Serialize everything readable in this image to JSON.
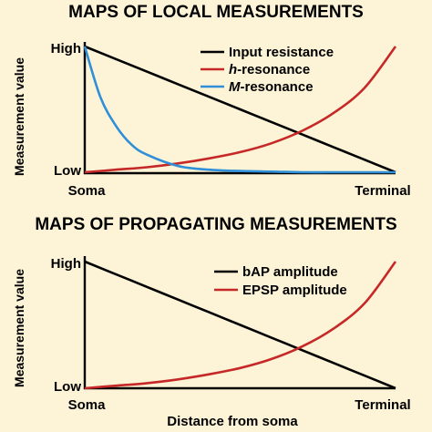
{
  "chart_data": [
    {
      "type": "line",
      "title": "MAPS OF LOCAL MEASUREMENTS",
      "xlabel": "",
      "ylabel": "Measurement value",
      "x_ticks": [
        "Soma",
        "Terminal"
      ],
      "y_ticks": [
        "High",
        "Low"
      ],
      "xlim": [
        0,
        1
      ],
      "ylim": [
        0,
        1
      ],
      "legend_position": "top-right",
      "series": [
        {
          "name": "Input resistance",
          "color": "#000000",
          "x": [
            0,
            0.1,
            0.2,
            0.3,
            0.4,
            0.5,
            0.6,
            0.7,
            0.8,
            0.9,
            1.0
          ],
          "y": [
            1.0,
            0.9,
            0.8,
            0.7,
            0.6,
            0.5,
            0.4,
            0.3,
            0.2,
            0.1,
            0.0
          ]
        },
        {
          "name": "h-resonance",
          "name_italic": "h",
          "name_rest": "-resonance",
          "color": "#c62828",
          "x": [
            0,
            0.1,
            0.2,
            0.3,
            0.4,
            0.5,
            0.6,
            0.7,
            0.8,
            0.9,
            1.0
          ],
          "y": [
            0.0,
            0.02,
            0.04,
            0.07,
            0.11,
            0.16,
            0.23,
            0.33,
            0.47,
            0.67,
            1.0
          ]
        },
        {
          "name": "M-resonance",
          "name_italic": "M",
          "name_rest": "-resonance",
          "color": "#2f8fd8",
          "x": [
            0,
            0.05,
            0.1,
            0.15,
            0.2,
            0.3,
            0.4,
            0.5,
            0.6,
            0.7,
            0.8,
            0.9,
            1.0
          ],
          "y": [
            1.0,
            0.6,
            0.37,
            0.22,
            0.14,
            0.05,
            0.02,
            0.01,
            0.005,
            0.0,
            0.0,
            0.0,
            0.0
          ]
        }
      ]
    },
    {
      "type": "line",
      "title": "MAPS OF PROPAGATING MEASUREMENTS",
      "xlabel": "Distance from soma",
      "ylabel": "Measurement value",
      "x_ticks": [
        "Soma",
        "Terminal"
      ],
      "y_ticks": [
        "High",
        "Low"
      ],
      "xlim": [
        0,
        1
      ],
      "ylim": [
        0,
        1
      ],
      "legend_position": "top-right",
      "series": [
        {
          "name": "bAP amplitude",
          "color": "#000000",
          "x": [
            0,
            0.1,
            0.2,
            0.3,
            0.4,
            0.5,
            0.6,
            0.7,
            0.8,
            0.9,
            1.0
          ],
          "y": [
            1.0,
            0.9,
            0.8,
            0.7,
            0.6,
            0.5,
            0.4,
            0.3,
            0.2,
            0.1,
            0.0
          ]
        },
        {
          "name": "EPSP amplitude",
          "color": "#c62828",
          "x": [
            0,
            0.1,
            0.2,
            0.3,
            0.4,
            0.5,
            0.6,
            0.7,
            0.8,
            0.9,
            1.0
          ],
          "y": [
            0.0,
            0.02,
            0.04,
            0.07,
            0.11,
            0.16,
            0.23,
            0.33,
            0.47,
            0.67,
            1.0
          ]
        }
      ]
    }
  ]
}
